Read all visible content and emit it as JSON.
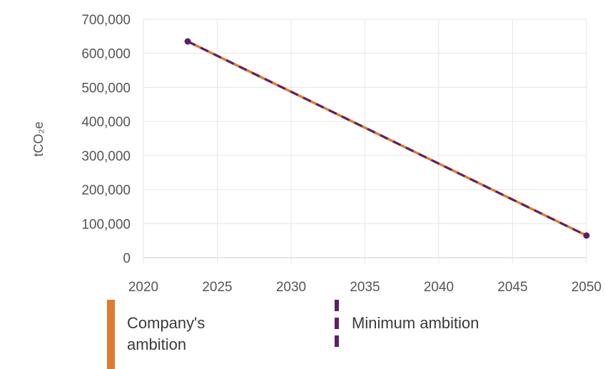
{
  "chart_data": {
    "type": "line",
    "ylabel": "tCO₂e",
    "xlim": [
      2020,
      2050
    ],
    "ylim": [
      0,
      700000
    ],
    "x_ticks": [
      "2020",
      "2025",
      "2030",
      "2035",
      "2040",
      "2045",
      "2050"
    ],
    "y_ticks": [
      "0",
      "100,000",
      "200,000",
      "300,000",
      "400,000",
      "500,000",
      "600,000",
      "700,000"
    ],
    "grid": true,
    "legend_position": "bottom",
    "series": [
      {
        "name": "Company's ambition",
        "color": "#e07b2e",
        "style": "solid",
        "x": [
          2023,
          2050
        ],
        "y": [
          635000,
          65000
        ]
      },
      {
        "name": "Minimum ambition",
        "color": "#5b2166",
        "style": "dashed",
        "x": [
          2023,
          2050
        ],
        "y": [
          635000,
          65000
        ]
      }
    ]
  }
}
